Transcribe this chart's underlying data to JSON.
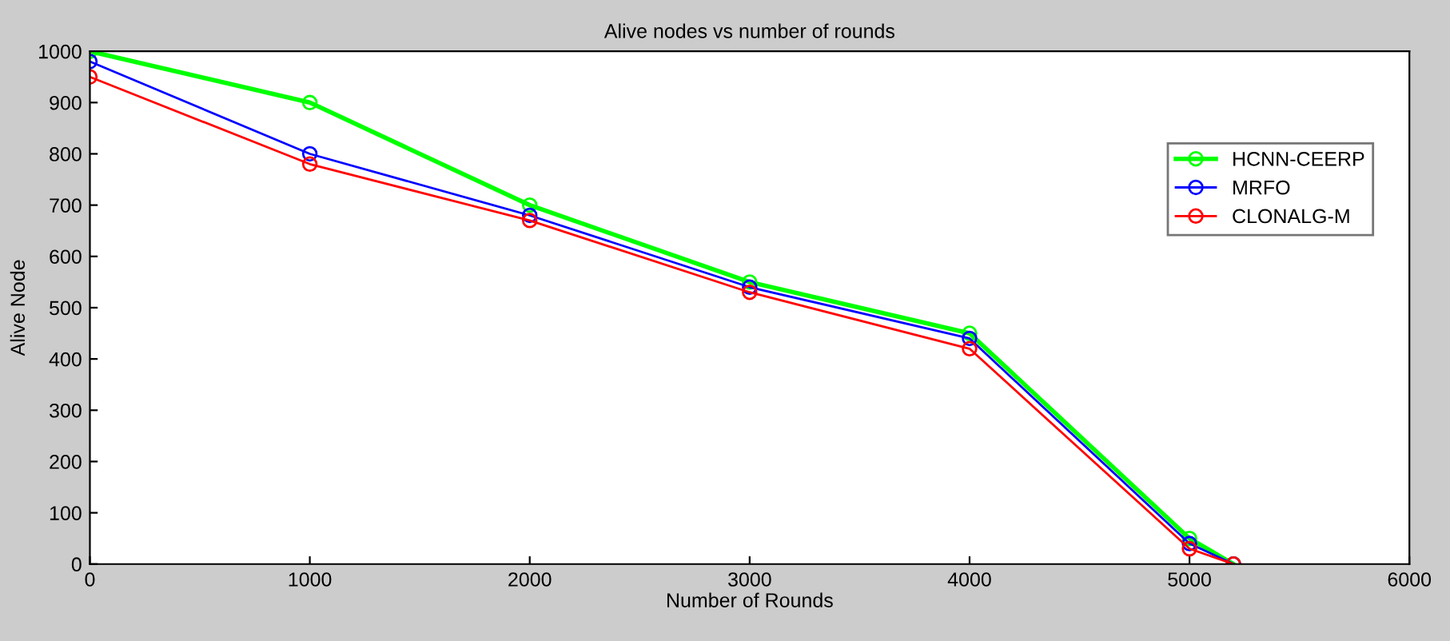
{
  "chart_data": {
    "type": "line",
    "title": "Alive nodes vs number of rounds",
    "xlabel": "Number of Rounds",
    "ylabel": "Alive Node",
    "x": [
      0,
      1000,
      2000,
      3000,
      4000,
      5000,
      5200
    ],
    "series": [
      {
        "name": "HCNN-CEERP",
        "color": "#00ff00",
        "values": [
          1000,
          900,
          700,
          550,
          450,
          50,
          0
        ]
      },
      {
        "name": "MRFO",
        "color": "#0000ff",
        "values": [
          980,
          800,
          680,
          540,
          440,
          40,
          0
        ]
      },
      {
        "name": "CLONALG-M",
        "color": "#ff0000",
        "values": [
          950,
          780,
          670,
          530,
          420,
          30,
          0
        ]
      }
    ],
    "xlim": [
      0,
      6000
    ],
    "xticks": [
      0,
      1000,
      2000,
      3000,
      4000,
      5000,
      6000
    ],
    "ylim": [
      0,
      1000
    ],
    "yticks": [
      0,
      100,
      200,
      300,
      400,
      500,
      600,
      700,
      800,
      900,
      1000
    ],
    "marker": "circle",
    "line_style": "solid",
    "grid": false,
    "legend": "top right"
  }
}
